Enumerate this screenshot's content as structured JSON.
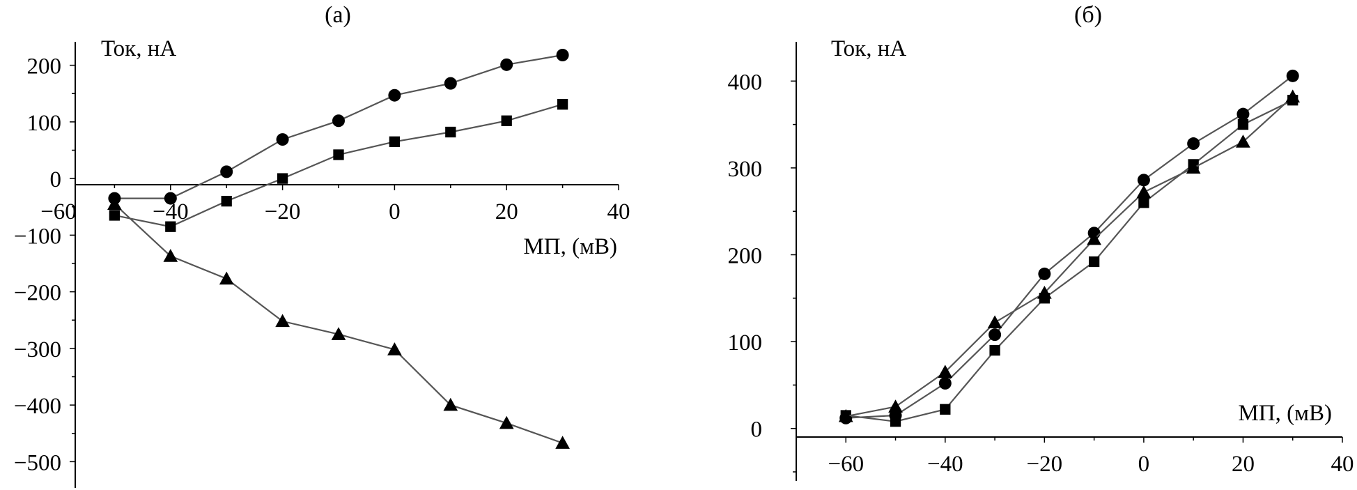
{
  "chart_data": [
    {
      "type": "line",
      "panel_label": "(а)",
      "xlabel": "МП, (мВ)",
      "ylabel": "Ток, нА",
      "xlim": [
        -60,
        40
      ],
      "ylim": [
        -550,
        250
      ],
      "x_ticks": [
        -60,
        -40,
        -20,
        0,
        20,
        40
      ],
      "x_tick_labels": [
        "−60",
        "−40",
        "−20",
        "0",
        "20",
        "40"
      ],
      "y_ticks": [
        200,
        100,
        0,
        -100,
        -200,
        -300,
        -400,
        -500
      ],
      "y_tick_labels": [
        "200",
        "100",
        "0",
        "−100",
        "−200",
        "−300",
        "−400",
        "−500"
      ],
      "line_color": "#555555",
      "marker_color": "#000000",
      "series": [
        {
          "marker": "circle",
          "points": [
            [
              -50,
              -35
            ],
            [
              -40,
              -35
            ],
            [
              -30,
              12
            ],
            [
              -20,
              69
            ],
            [
              -10,
              102
            ],
            [
              0,
              147
            ],
            [
              10,
              168
            ],
            [
              20,
              201
            ],
            [
              30,
              218
            ]
          ]
        },
        {
          "marker": "square",
          "points": [
            [
              -50,
              -65
            ],
            [
              -40,
              -85
            ],
            [
              -30,
              -40
            ],
            [
              -20,
              0
            ],
            [
              -10,
              42
            ],
            [
              0,
              65
            ],
            [
              10,
              82
            ],
            [
              20,
              102
            ],
            [
              30,
              131
            ]
          ]
        },
        {
          "marker": "triangle",
          "points": [
            [
              -50,
              -45
            ],
            [
              -40,
              -137
            ],
            [
              -30,
              -177
            ],
            [
              -20,
              -252
            ],
            [
              -10,
              -275
            ],
            [
              0,
              -302
            ],
            [
              10,
              -400
            ],
            [
              20,
              -432
            ],
            [
              30,
              -467
            ]
          ]
        }
      ]
    },
    {
      "type": "line",
      "panel_label": "(б)",
      "xlabel": "МП, (мВ)",
      "ylabel": "Ток, нА",
      "xlim": [
        -70,
        40
      ],
      "ylim": [
        -50,
        450
      ],
      "x_ticks": [
        -60,
        -40,
        -20,
        0,
        20,
        40
      ],
      "x_tick_labels": [
        "−60",
        "−40",
        "−20",
        "0",
        "20",
        "40"
      ],
      "y_ticks": [
        0,
        100,
        200,
        300,
        400
      ],
      "y_tick_labels": [
        "0",
        "100",
        "200",
        "300",
        "400"
      ],
      "line_color": "#555555",
      "marker_color": "#000000",
      "series": [
        {
          "marker": "circle",
          "points": [
            [
              -60,
              12
            ],
            [
              -50,
              15
            ],
            [
              -40,
              52
            ],
            [
              -30,
              108
            ],
            [
              -20,
              178
            ],
            [
              -10,
              225
            ],
            [
              0,
              286
            ],
            [
              10,
              328
            ],
            [
              20,
              362
            ],
            [
              30,
              406
            ]
          ]
        },
        {
          "marker": "square",
          "points": [
            [
              -60,
              15
            ],
            [
              -50,
              8
            ],
            [
              -40,
              22
            ],
            [
              -30,
              90
            ],
            [
              -20,
              150
            ],
            [
              -10,
              192
            ],
            [
              0,
              260
            ],
            [
              10,
              304
            ],
            [
              20,
              350
            ],
            [
              30,
              378
            ]
          ]
        },
        {
          "marker": "triangle",
          "points": [
            [
              -60,
              14
            ],
            [
              -50,
              25
            ],
            [
              -40,
              65
            ],
            [
              -30,
              122
            ],
            [
              -20,
              156
            ],
            [
              -10,
              218
            ],
            [
              0,
              272
            ],
            [
              10,
              300
            ],
            [
              20,
              330
            ],
            [
              30,
              382
            ]
          ]
        }
      ]
    }
  ]
}
